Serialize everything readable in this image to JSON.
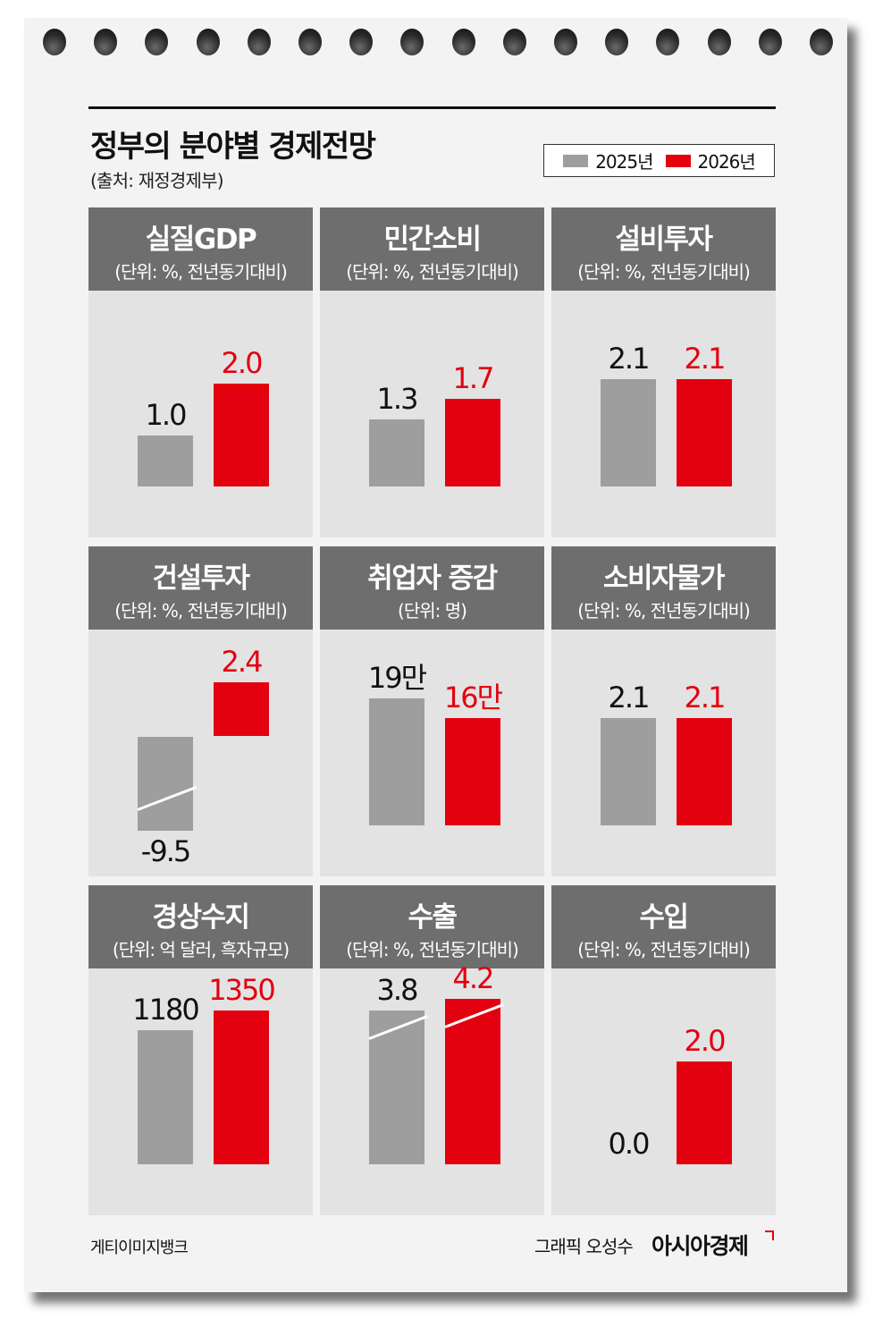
{
  "header": {
    "title": "정부의 분야별 경제전망",
    "source": "(출처: 재정경제부)"
  },
  "legend": [
    {
      "label": "2025년",
      "color": "#9e9e9e"
    },
    {
      "label": "2026년",
      "color": "#e3000f"
    }
  ],
  "footer": {
    "photo_credit": "게티이미지뱅크",
    "graphic_credit": "그래픽 오성수",
    "brand": "아시아경제"
  },
  "colors": {
    "y2025": "#9e9e9e",
    "y2026": "#e3000f",
    "header_bg": "#6e6e6e",
    "panel_bg": "#e3e3e3"
  },
  "chart_data": [
    {
      "type": "bar",
      "title": "실질GDP",
      "unit": "(단위: %, 전년동기대비)",
      "categories": [
        "2025년",
        "2026년"
      ],
      "values": [
        1.0,
        2.0
      ],
      "labels": [
        "1.0",
        "2.0"
      ]
    },
    {
      "type": "bar",
      "title": "민간소비",
      "unit": "(단위: %, 전년동기대비)",
      "categories": [
        "2025년",
        "2026년"
      ],
      "values": [
        1.3,
        1.7
      ],
      "labels": [
        "1.3",
        "1.7"
      ]
    },
    {
      "type": "bar",
      "title": "설비투자",
      "unit": "(단위: %, 전년동기대비)",
      "categories": [
        "2025년",
        "2026년"
      ],
      "values": [
        2.1,
        2.1
      ],
      "labels": [
        "2.1",
        "2.1"
      ]
    },
    {
      "type": "bar",
      "title": "건설투자",
      "unit": "(단위: %, 전년동기대비)",
      "categories": [
        "2025년",
        "2026년"
      ],
      "values": [
        -9.5,
        2.4
      ],
      "labels": [
        "-9.5",
        "2.4"
      ],
      "axis_break": true
    },
    {
      "type": "bar",
      "title": "취업자 증감",
      "unit": "(단위: 명)",
      "categories": [
        "2025년",
        "2026년"
      ],
      "values": [
        190000,
        160000
      ],
      "labels": [
        "19만",
        "16만"
      ]
    },
    {
      "type": "bar",
      "title": "소비자물가",
      "unit": "(단위: %, 전년동기대비)",
      "categories": [
        "2025년",
        "2026년"
      ],
      "values": [
        2.1,
        2.1
      ],
      "labels": [
        "2.1",
        "2.1"
      ]
    },
    {
      "type": "bar",
      "title": "경상수지",
      "unit": "(단위: 억 달러, 흑자규모)",
      "categories": [
        "2025년",
        "2026년"
      ],
      "values": [
        1180,
        1350
      ],
      "labels": [
        "1180",
        "1350"
      ]
    },
    {
      "type": "bar",
      "title": "수출",
      "unit": "(단위: %, 전년동기대비)",
      "categories": [
        "2025년",
        "2026년"
      ],
      "values": [
        3.8,
        4.2
      ],
      "labels": [
        "3.8",
        "4.2"
      ],
      "axis_break": true
    },
    {
      "type": "bar",
      "title": "수입",
      "unit": "(단위: %, 전년동기대비)",
      "categories": [
        "2025년",
        "2026년"
      ],
      "values": [
        0.0,
        2.0
      ],
      "labels": [
        "0.0",
        "2.0"
      ]
    }
  ]
}
